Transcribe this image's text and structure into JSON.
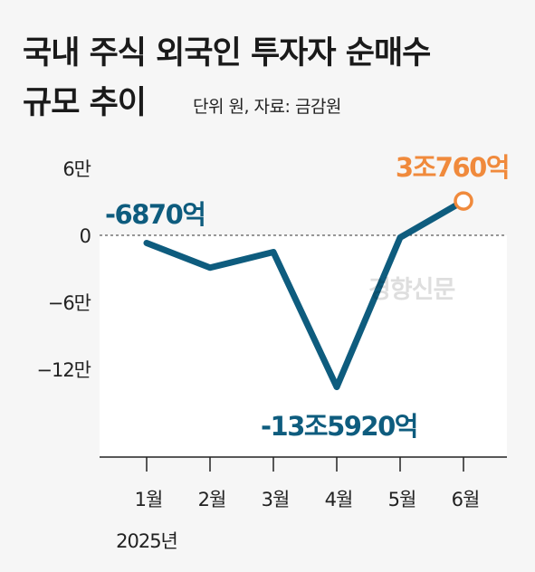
{
  "title": {
    "line1": "국내 주식 외국인 투자자 순매수",
    "line2": "규모 추이"
  },
  "source_note": "단위 원, 자료: 금감원",
  "watermark": "경향신문",
  "colors": {
    "line": "#0e5c7e",
    "highlight": "#f08a3c",
    "plot_bg": "#ffffff",
    "page_bg": "#f6f6f6",
    "annotation_dark": "#0e5c7e"
  },
  "chart_data": {
    "type": "line",
    "title": "국내 주식 외국인 투자자 순매수 규모 추이",
    "categories": [
      "1월",
      "2월",
      "3월",
      "4월",
      "5월",
      "6월"
    ],
    "year_label": "2025년",
    "x_unit_note": "2025년",
    "y_unit": "원",
    "ylim": [
      -150000,
      60000
    ],
    "y_ticks": [
      60000,
      0,
      -60000,
      -120000
    ],
    "y_tick_labels": [
      "6만",
      "0",
      "−6만",
      "−12만"
    ],
    "series": [
      {
        "values": [
          -6870,
          -29000,
          -15000,
          -135920,
          -2000,
          30760
        ]
      }
    ],
    "annotations": [
      {
        "index": 0,
        "text": "-6870억",
        "color": "#0e5c7e"
      },
      {
        "index": 3,
        "text": "-13조5920억",
        "color": "#0e5c7e"
      },
      {
        "index": 5,
        "text": "3조760억",
        "color": "#f08a3c"
      }
    ],
    "zero_line": "dashed",
    "grid": false,
    "legend": "none"
  }
}
